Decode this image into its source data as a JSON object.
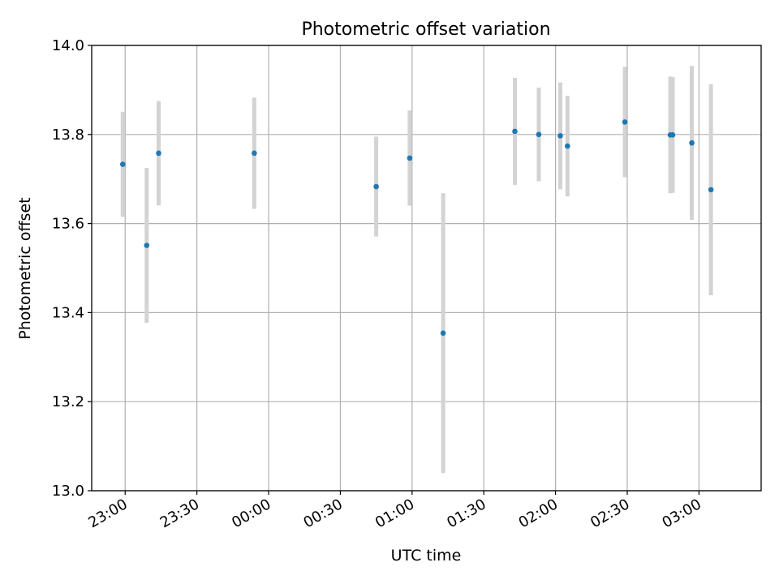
{
  "chart_data": {
    "type": "scatter",
    "title": "Photometric offset variation",
    "xlabel": "UTC time",
    "ylabel": "Photometric offset",
    "ylim": [
      13.0,
      14.0
    ],
    "y_ticks": [
      13.0,
      13.2,
      13.4,
      13.6,
      13.8,
      14.0
    ],
    "y_tick_labels": [
      "13.0",
      "13.2",
      "13.4",
      "13.6",
      "13.8",
      "14.0"
    ],
    "xlim": [
      "22:46",
      "03:26"
    ],
    "x_ticks": [
      "23:00",
      "23:30",
      "00:00",
      "00:30",
      "01:00",
      "01:30",
      "02:00",
      "02:30",
      "03:00"
    ],
    "x_tick_labels": [
      "23:00",
      "23:30",
      "00:00",
      "00:30",
      "01:00",
      "01:30",
      "02:00",
      "02:30",
      "03:00"
    ],
    "grid": true,
    "errorbar_color": "#d3d3d3",
    "point_color": "#1f77b4",
    "points": [
      {
        "x": "22:59",
        "y": 13.733,
        "yerr": 0.118
      },
      {
        "x": "23:09",
        "y": 13.551,
        "yerr": 0.174
      },
      {
        "x": "23:14",
        "y": 13.758,
        "yerr": 0.117
      },
      {
        "x": "23:54",
        "y": 13.758,
        "yerr": 0.125
      },
      {
        "x": "00:45",
        "y": 13.683,
        "yerr": 0.112
      },
      {
        "x": "00:59",
        "y": 13.747,
        "yerr": 0.107
      },
      {
        "x": "01:13",
        "y": 13.354,
        "yerr": 0.314
      },
      {
        "x": "01:43",
        "y": 13.807,
        "yerr": 0.12
      },
      {
        "x": "01:53",
        "y": 13.8,
        "yerr": 0.105
      },
      {
        "x": "02:02",
        "y": 13.797,
        "yerr": 0.12
      },
      {
        "x": "02:05",
        "y": 13.774,
        "yerr": 0.113
      },
      {
        "x": "02:29",
        "y": 13.828,
        "yerr": 0.124
      },
      {
        "x": "02:48",
        "y": 13.799,
        "yerr": 0.131
      },
      {
        "x": "02:49",
        "y": 13.799,
        "yerr": 0.13
      },
      {
        "x": "02:57",
        "y": 13.781,
        "yerr": 0.173
      },
      {
        "x": "03:05",
        "y": 13.676,
        "yerr": 0.237
      }
    ]
  }
}
